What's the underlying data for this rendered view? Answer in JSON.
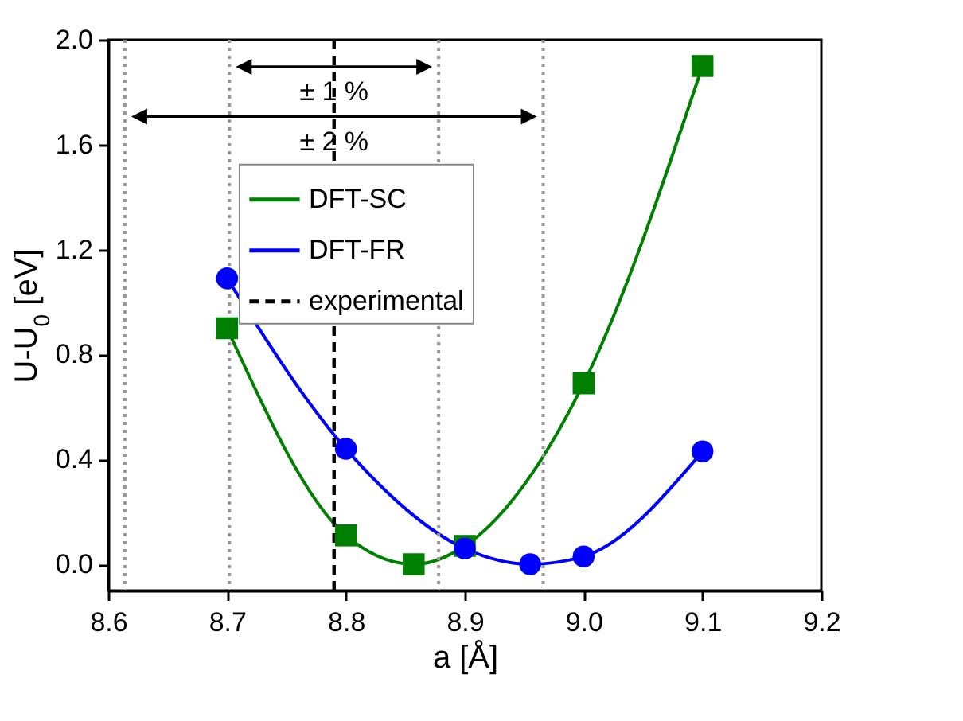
{
  "chart_data": {
    "type": "line",
    "xlabel": "a [Å]",
    "ylabel": "U-U$_{0}$ [eV]",
    "xlim": [
      8.6,
      9.2
    ],
    "xticks": [
      8.6,
      8.7,
      8.8,
      8.9,
      {
        "value": 9,
        "label": "9.0"
      },
      9.1,
      9.2
    ],
    "ylim": [
      -0.1,
      2.0
    ],
    "yticks": [
      {
        "value": 0,
        "label": "0.0"
      },
      0.4,
      0.8,
      1.2,
      1.6,
      {
        "value": 2,
        "label": "2.0"
      }
    ],
    "series": [
      {
        "name": "DFT-SC",
        "color": "#008000",
        "marker": "square",
        "x": [
          8.7,
          8.8,
          8.857,
          8.9,
          9.0,
          9.1
        ],
        "values": [
          0.9,
          0.11,
          0.0,
          0.07,
          0.69,
          1.9
        ]
      },
      {
        "name": "DFT-FR",
        "color": "#0000ff",
        "marker": "circle",
        "x": [
          8.7,
          8.8,
          8.9,
          8.955,
          9.0,
          9.1
        ],
        "values": [
          1.09,
          0.44,
          0.06,
          0.0,
          0.03,
          0.43
        ]
      }
    ],
    "ref_lines": [
      {
        "axis": "x",
        "value": 8.79,
        "label": "experimental",
        "color": "#000000",
        "line_style": "dashed"
      },
      {
        "axis": "x",
        "value": 8.614,
        "color": "#999999",
        "line_style": "dotted"
      },
      {
        "axis": "x",
        "value": 8.702,
        "color": "#999999",
        "line_style": "dotted"
      },
      {
        "axis": "x",
        "value": 8.878,
        "color": "#999999",
        "line_style": "dotted"
      },
      {
        "axis": "x",
        "value": 8.966,
        "color": "#999999",
        "line_style": "dotted"
      }
    ],
    "annotations": [
      {
        "text": "± 1 %",
        "x": 8.79,
        "y": 1.8
      },
      {
        "text": "± 2 %",
        "x": 8.79,
        "y": 1.61
      }
    ],
    "legend": "top",
    "line_style": "solid"
  }
}
